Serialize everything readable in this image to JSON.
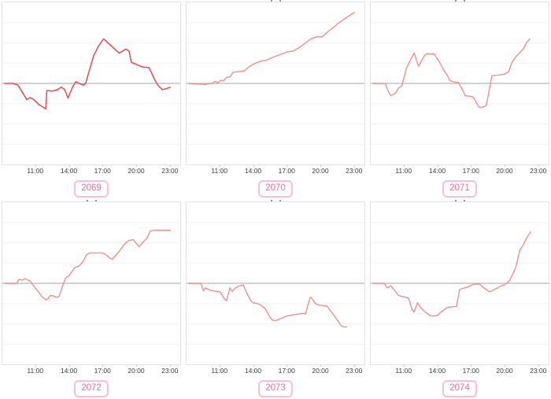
{
  "page": {
    "background": "#ffffff"
  },
  "chart_data": {
    "type": "line",
    "layout": {
      "rows": 2,
      "cols": 3,
      "legend": "none",
      "grid": "horizontal-faint",
      "y_tick_labels_visible": false
    },
    "x_axis": {
      "range_hours": [
        8,
        24
      ],
      "tick_hours": [
        11,
        14,
        17,
        20,
        23
      ],
      "tick_labels": [
        "11:00",
        "14:00",
        "17:00",
        "20:00",
        "23:00"
      ]
    },
    "y_axis": {
      "range": [
        -4,
        4
      ],
      "gridlines": [
        -3,
        -2,
        -1,
        1,
        2,
        3
      ],
      "zero_line": 0
    },
    "colors": {
      "grid": "#f4f4f4",
      "zero_line": "#b6b6b6",
      "plot_border": "#e3e3e3",
      "tick_text": "#3d3d3d",
      "badge_text": "#ee6fa0",
      "badge_border": "#f9c0d2"
    },
    "charts": [
      {
        "label": "2069",
        "line_color": "#e95257",
        "stroke_width": 1.6,
        "clipped_title_visible": false,
        "points": [
          [
            8.2,
            0
          ],
          [
            9.0,
            0
          ],
          [
            9.4,
            -0.08
          ],
          [
            10.2,
            -0.8
          ],
          [
            10.5,
            -0.7
          ],
          [
            10.8,
            -0.78
          ],
          [
            11.3,
            -1.05
          ],
          [
            11.9,
            -1.25
          ],
          [
            12.0,
            -0.35
          ],
          [
            12.5,
            -0.38
          ],
          [
            13.0,
            -0.3
          ],
          [
            13.3,
            -0.18
          ],
          [
            13.6,
            -0.3
          ],
          [
            13.9,
            -0.72
          ],
          [
            14.3,
            -0.2
          ],
          [
            14.6,
            0.08
          ],
          [
            15.0,
            -0.02
          ],
          [
            15.3,
            -0.08
          ],
          [
            15.5,
            0.02
          ],
          [
            16.2,
            1.35
          ],
          [
            16.6,
            1.8
          ],
          [
            17.1,
            2.2
          ],
          [
            17.5,
            2.0
          ],
          [
            18.5,
            1.5
          ],
          [
            19.1,
            1.69
          ],
          [
            19.4,
            1.6
          ],
          [
            19.6,
            1.04
          ],
          [
            20.0,
            0.95
          ],
          [
            20.6,
            0.81
          ],
          [
            21.2,
            0.78
          ],
          [
            21.7,
            0.19
          ],
          [
            22.0,
            -0.1
          ],
          [
            22.4,
            -0.31
          ],
          [
            22.8,
            -0.25
          ],
          [
            23.1,
            -0.19
          ]
        ]
      },
      {
        "label": "2070",
        "line_color": "#f28e8e",
        "stroke_width": 1.4,
        "clipped_title_visible": true,
        "points": [
          [
            8.2,
            0
          ],
          [
            9.0,
            -0.03
          ],
          [
            9.7,
            -0.05
          ],
          [
            10.3,
            0.02
          ],
          [
            10.6,
            0.1
          ],
          [
            10.8,
            0.04
          ],
          [
            11.1,
            0.15
          ],
          [
            11.3,
            0.12
          ],
          [
            11.6,
            0.3
          ],
          [
            11.9,
            0.32
          ],
          [
            12.2,
            0.55
          ],
          [
            12.7,
            0.58
          ],
          [
            13.2,
            0.62
          ],
          [
            13.7,
            0.85
          ],
          [
            14.2,
            1.0
          ],
          [
            14.7,
            1.1
          ],
          [
            15.2,
            1.15
          ],
          [
            15.8,
            1.3
          ],
          [
            16.4,
            1.42
          ],
          [
            17.0,
            1.55
          ],
          [
            17.6,
            1.6
          ],
          [
            18.1,
            1.75
          ],
          [
            18.7,
            2.0
          ],
          [
            19.2,
            2.2
          ],
          [
            19.7,
            2.3
          ],
          [
            20.2,
            2.3
          ],
          [
            20.7,
            2.55
          ],
          [
            21.2,
            2.75
          ],
          [
            21.6,
            2.95
          ],
          [
            22.0,
            3.1
          ],
          [
            22.5,
            3.3
          ],
          [
            23.1,
            3.5
          ]
        ]
      },
      {
        "label": "2071",
        "line_color": "#f28e8e",
        "stroke_width": 1.4,
        "clipped_title_visible": true,
        "points": [
          [
            8.2,
            0
          ],
          [
            9.3,
            0
          ],
          [
            9.6,
            -0.42
          ],
          [
            9.8,
            -0.6
          ],
          [
            10.2,
            -0.5
          ],
          [
            10.5,
            -0.23
          ],
          [
            10.8,
            -0.12
          ],
          [
            11.2,
            0.73
          ],
          [
            11.6,
            1.19
          ],
          [
            11.9,
            1.5
          ],
          [
            12.3,
            0.85
          ],
          [
            12.8,
            1.35
          ],
          [
            13.0,
            1.46
          ],
          [
            13.7,
            1.46
          ],
          [
            14.2,
            1.04
          ],
          [
            14.5,
            0.73
          ],
          [
            14.9,
            0.38
          ],
          [
            15.1,
            0.15
          ],
          [
            15.4,
            0.08
          ],
          [
            15.9,
            0.04
          ],
          [
            16.3,
            -0.38
          ],
          [
            16.5,
            -0.6
          ],
          [
            17.1,
            -0.65
          ],
          [
            17.3,
            -0.73
          ],
          [
            17.7,
            -1.15
          ],
          [
            17.9,
            -1.19
          ],
          [
            18.2,
            -1.15
          ],
          [
            18.4,
            -1.08
          ],
          [
            18.9,
            0.38
          ],
          [
            19.6,
            0.42
          ],
          [
            20.0,
            0.46
          ],
          [
            20.4,
            0.58
          ],
          [
            20.7,
            1.04
          ],
          [
            21.1,
            1.35
          ],
          [
            21.3,
            1.46
          ],
          [
            21.7,
            1.69
          ],
          [
            22.0,
            2.0
          ],
          [
            22.3,
            2.19
          ]
        ]
      },
      {
        "label": "2072",
        "line_color": "#f28e8e",
        "stroke_width": 1.4,
        "clipped_title_visible": true,
        "points": [
          [
            8.2,
            0
          ],
          [
            9.3,
            0
          ],
          [
            9.5,
            0.19
          ],
          [
            9.8,
            0.15
          ],
          [
            10.0,
            0.23
          ],
          [
            10.2,
            0.19
          ],
          [
            10.5,
            0.12
          ],
          [
            10.8,
            -0.12
          ],
          [
            11.2,
            -0.38
          ],
          [
            11.5,
            -0.62
          ],
          [
            11.9,
            -0.81
          ],
          [
            12.1,
            -0.77
          ],
          [
            12.3,
            -0.6
          ],
          [
            12.6,
            -0.62
          ],
          [
            12.9,
            -0.69
          ],
          [
            13.1,
            -0.65
          ],
          [
            13.5,
            0
          ],
          [
            13.7,
            0.27
          ],
          [
            14.0,
            0.38
          ],
          [
            14.2,
            0.54
          ],
          [
            14.5,
            0.77
          ],
          [
            14.9,
            0.85
          ],
          [
            15.2,
            1.04
          ],
          [
            15.6,
            1.42
          ],
          [
            15.9,
            1.5
          ],
          [
            16.6,
            1.5
          ],
          [
            17.0,
            1.5
          ],
          [
            17.3,
            1.42
          ],
          [
            17.7,
            1.23
          ],
          [
            17.9,
            1.19
          ],
          [
            18.4,
            1.5
          ],
          [
            18.7,
            1.73
          ],
          [
            19.1,
            2.0
          ],
          [
            19.4,
            2.12
          ],
          [
            19.8,
            2.15
          ],
          [
            20.0,
            2.0
          ],
          [
            20.3,
            1.81
          ],
          [
            20.6,
            2.0
          ],
          [
            21.0,
            2.23
          ],
          [
            21.3,
            2.58
          ],
          [
            21.7,
            2.62
          ],
          [
            22.4,
            2.62
          ],
          [
            23.1,
            2.62
          ]
        ]
      },
      {
        "label": "2073",
        "line_color": "#f28e8e",
        "stroke_width": 1.4,
        "clipped_title_visible": true,
        "points": [
          [
            8.2,
            0
          ],
          [
            9.3,
            0
          ],
          [
            9.5,
            -0.38
          ],
          [
            9.7,
            -0.23
          ],
          [
            10.0,
            -0.31
          ],
          [
            10.2,
            -0.35
          ],
          [
            10.5,
            -0.38
          ],
          [
            10.8,
            -0.4
          ],
          [
            11.0,
            -0.42
          ],
          [
            11.4,
            -0.77
          ],
          [
            11.6,
            -0.85
          ],
          [
            11.9,
            -0.23
          ],
          [
            12.1,
            -0.4
          ],
          [
            12.4,
            -0.23
          ],
          [
            12.6,
            -0.15
          ],
          [
            13.1,
            -0.08
          ],
          [
            13.5,
            -0.58
          ],
          [
            13.8,
            -0.88
          ],
          [
            14.0,
            -0.96
          ],
          [
            14.4,
            -1.0
          ],
          [
            14.7,
            -1.08
          ],
          [
            15.1,
            -1.27
          ],
          [
            15.4,
            -1.58
          ],
          [
            15.7,
            -1.81
          ],
          [
            16.0,
            -1.85
          ],
          [
            16.5,
            -1.73
          ],
          [
            17.0,
            -1.62
          ],
          [
            17.7,
            -1.54
          ],
          [
            18.4,
            -1.5
          ],
          [
            18.7,
            -1.5
          ],
          [
            19.1,
            -0.73
          ],
          [
            19.2,
            -0.69
          ],
          [
            19.6,
            -1.0
          ],
          [
            19.9,
            -1.08
          ],
          [
            20.4,
            -1.1
          ],
          [
            20.6,
            -1.12
          ],
          [
            21.1,
            -1.46
          ],
          [
            21.4,
            -1.69
          ],
          [
            21.9,
            -2.08
          ],
          [
            22.1,
            -2.15
          ],
          [
            22.4,
            -2.15
          ]
        ]
      },
      {
        "label": "2074",
        "line_color": "#f28e8e",
        "stroke_width": 1.4,
        "clipped_title_visible": true,
        "points": [
          [
            8.2,
            0
          ],
          [
            9.2,
            0
          ],
          [
            9.5,
            -0.23
          ],
          [
            9.6,
            -0.19
          ],
          [
            9.8,
            -0.12
          ],
          [
            10.1,
            -0.31
          ],
          [
            10.5,
            -0.6
          ],
          [
            10.8,
            -0.65
          ],
          [
            11.2,
            -0.69
          ],
          [
            11.4,
            -0.73
          ],
          [
            11.7,
            -1.27
          ],
          [
            11.9,
            -1.42
          ],
          [
            12.2,
            -0.96
          ],
          [
            12.6,
            -1.27
          ],
          [
            12.9,
            -1.42
          ],
          [
            13.3,
            -1.58
          ],
          [
            13.6,
            -1.62
          ],
          [
            14.0,
            -1.58
          ],
          [
            14.4,
            -1.38
          ],
          [
            14.9,
            -1.19
          ],
          [
            15.4,
            -1.15
          ],
          [
            15.7,
            -1.15
          ],
          [
            16.0,
            -0.31
          ],
          [
            16.4,
            -0.23
          ],
          [
            16.7,
            -0.19
          ],
          [
            17.1,
            -0.08
          ],
          [
            17.4,
            -0.04
          ],
          [
            17.8,
            -0.04
          ],
          [
            18.1,
            -0.19
          ],
          [
            18.5,
            -0.35
          ],
          [
            18.7,
            -0.42
          ],
          [
            19.1,
            -0.31
          ],
          [
            19.4,
            -0.23
          ],
          [
            19.6,
            -0.15
          ],
          [
            20.0,
            -0.08
          ],
          [
            20.3,
            0.04
          ],
          [
            20.5,
            0.15
          ],
          [
            20.7,
            0.38
          ],
          [
            21.0,
            0.73
          ],
          [
            21.2,
            1.15
          ],
          [
            21.4,
            1.62
          ],
          [
            21.7,
            1.88
          ],
          [
            21.9,
            2.12
          ],
          [
            22.1,
            2.31
          ],
          [
            22.4,
            2.54
          ]
        ]
      }
    ]
  }
}
